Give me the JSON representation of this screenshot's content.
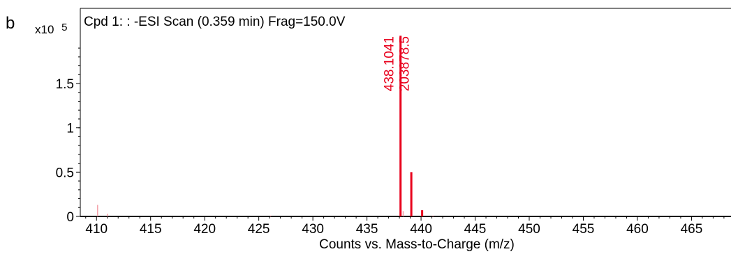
{
  "panel_label": "b",
  "chart_data": {
    "type": "bar",
    "title": "Cpd 1: : -ESI Scan (0.359 min) Frag=150.0V",
    "xlabel": "Counts vs. Mass-to-Charge (m/z)",
    "ylabel": "",
    "y_multiplier_label": "x10",
    "y_multiplier_exponent": "5",
    "xlim": [
      408.5,
      468.2
    ],
    "ylim": [
      0,
      2.05
    ],
    "x_ticks": [
      410,
      415,
      420,
      425,
      430,
      435,
      440,
      445,
      450,
      455,
      460,
      465
    ],
    "y_ticks": [
      0,
      0.5,
      1,
      1.5
    ],
    "y_tick_labels": [
      "0",
      "0.5",
      "1",
      "1.5"
    ],
    "grid": false,
    "series": [
      {
        "color": "#e8001c",
        "peaks": [
          {
            "x": 410.1,
            "y": 0.13,
            "faint": true
          },
          {
            "x": 411.0,
            "y": 0.03,
            "faint": true
          },
          {
            "x": 426.1,
            "y": 0.01,
            "faint": true
          },
          {
            "x": 438.1041,
            "y": 2.038785,
            "faint": false
          },
          {
            "x": 438.35,
            "y": 0.06,
            "faint": true
          },
          {
            "x": 439.1,
            "y": 0.5,
            "faint": false
          },
          {
            "x": 440.1,
            "y": 0.07,
            "faint": false
          },
          {
            "x": 441.1,
            "y": 0.01,
            "faint": true
          }
        ]
      }
    ],
    "annotations": [
      {
        "x": 438.1041,
        "lines": [
          "438.1041",
          "203878.5"
        ]
      }
    ],
    "colors": {
      "axis": "#000000",
      "peak": "#e8001c",
      "faint_peak": "#f4a0a8",
      "label": "#e8001c"
    }
  }
}
